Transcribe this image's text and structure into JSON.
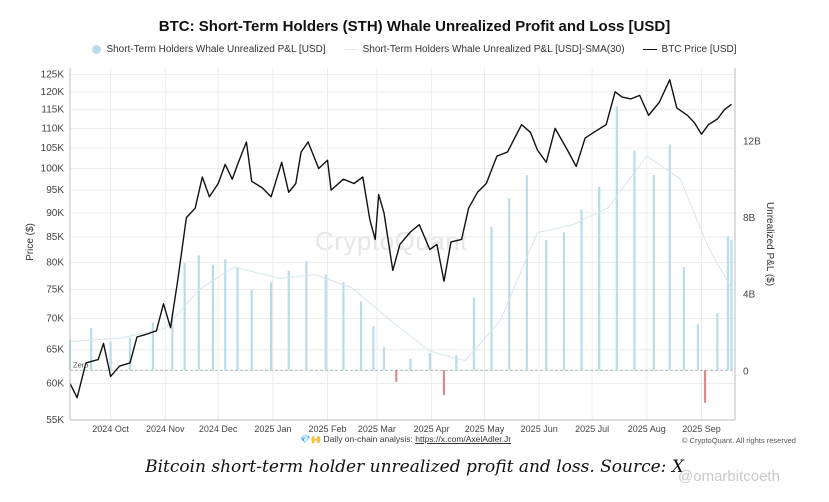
{
  "title": "BTC: Short-Term Holders (STH) Whale Unrealized Profit and Loss [USD]",
  "legend": [
    {
      "label": "Short-Term Holders Whale Unrealized P&L [USD]",
      "icon": "filled-circle",
      "color": "#b8dcea"
    },
    {
      "label": "Short-Term Holders Whale Unrealized P&L [USD]-SMA(30)",
      "icon": "thin-line",
      "color": "#d6e6ec"
    },
    {
      "label": "BTC Price [USD]",
      "icon": "line",
      "color": "#111111"
    }
  ],
  "watermark_center": "CryptoQuant",
  "footer": {
    "text": "Daily on-chain analysis:",
    "link": "https://x.com/AxelAdler.Jr"
  },
  "copyright": "© CryptoQuant. All rights reserved",
  "caption": "Bitcoin short-term holder unrealized profit and loss. Source: X",
  "corner_watermark": "@omarbitcoeth",
  "colors": {
    "bars_positive": "#b8dcea",
    "bars_negative": "#d98b8b",
    "price": "#111111",
    "sma": "#d6e6ec"
  },
  "chart_data": {
    "type": "bar",
    "x_axis": {
      "ticks": [
        "2024 Oct",
        "2024 Nov",
        "2024 Dec",
        "2025 Jan",
        "2025 Feb",
        "2025 Mar",
        "2025 Apr",
        "2025 May",
        "2025 Jun",
        "2025 Jul",
        "2025 Aug",
        "2025 Sep"
      ],
      "range": [
        "2024-09-08",
        "2025-09-20"
      ]
    },
    "y_left": {
      "label": "Price ($)",
      "scale": "log",
      "ticks": [
        "55K",
        "60K",
        "65K",
        "70K",
        "75K",
        "80K",
        "85K",
        "90K",
        "95K",
        "100K",
        "105K",
        "110K",
        "115K",
        "120K",
        "125K"
      ],
      "range": [
        55000,
        127000
      ]
    },
    "y_right": {
      "label": "Unrealized P&L ($)",
      "ticks": [
        "0",
        "4B",
        "8B",
        "12B"
      ],
      "range": [
        -2600000000,
        15800000000
      ],
      "zero_label": "Zero"
    },
    "series": [
      {
        "name": "BTC Price [USD]",
        "type": "line",
        "axis": "left",
        "points": [
          [
            "2024-09-08",
            60000
          ],
          [
            "2024-09-12",
            58000
          ],
          [
            "2024-09-17",
            63000
          ],
          [
            "2024-09-24",
            63500
          ],
          [
            "2024-09-27",
            66000
          ],
          [
            "2024-10-01",
            61000
          ],
          [
            "2024-10-06",
            62500
          ],
          [
            "2024-10-12",
            63000
          ],
          [
            "2024-10-16",
            67000
          ],
          [
            "2024-10-22",
            67500
          ],
          [
            "2024-10-27",
            68000
          ],
          [
            "2024-10-31",
            72500
          ],
          [
            "2024-11-04",
            68500
          ],
          [
            "2024-11-08",
            76500
          ],
          [
            "2024-11-13",
            89000
          ],
          [
            "2024-11-18",
            91000
          ],
          [
            "2024-11-22",
            98000
          ],
          [
            "2024-11-26",
            93500
          ],
          [
            "2024-12-01",
            96500
          ],
          [
            "2024-12-05",
            101000
          ],
          [
            "2024-12-09",
            97500
          ],
          [
            "2024-12-12",
            101000
          ],
          [
            "2024-12-17",
            106500
          ],
          [
            "2024-12-20",
            97000
          ],
          [
            "2024-12-26",
            95500
          ],
          [
            "2024-12-31",
            93500
          ],
          [
            "2025-01-06",
            101500
          ],
          [
            "2025-01-10",
            94500
          ],
          [
            "2025-01-14",
            96500
          ],
          [
            "2025-01-17",
            104000
          ],
          [
            "2025-01-21",
            106500
          ],
          [
            "2025-01-27",
            100000
          ],
          [
            "2025-02-01",
            102000
          ],
          [
            "2025-02-03",
            95000
          ],
          [
            "2025-02-10",
            97500
          ],
          [
            "2025-02-16",
            96500
          ],
          [
            "2025-02-21",
            98000
          ],
          [
            "2025-02-25",
            88500
          ],
          [
            "2025-02-28",
            84500
          ],
          [
            "2025-03-02",
            94000
          ],
          [
            "2025-03-05",
            90000
          ],
          [
            "2025-03-10",
            78500
          ],
          [
            "2025-03-14",
            83500
          ],
          [
            "2025-03-20",
            86000
          ],
          [
            "2025-03-25",
            87500
          ],
          [
            "2025-03-31",
            82500
          ],
          [
            "2025-04-04",
            83500
          ],
          [
            "2025-04-08",
            76500
          ],
          [
            "2025-04-12",
            84000
          ],
          [
            "2025-04-18",
            84500
          ],
          [
            "2025-04-22",
            91000
          ],
          [
            "2025-04-27",
            94500
          ],
          [
            "2025-05-02",
            96500
          ],
          [
            "2025-05-08",
            103000
          ],
          [
            "2025-05-14",
            104000
          ],
          [
            "2025-05-22",
            111000
          ],
          [
            "2025-05-27",
            109000
          ],
          [
            "2025-05-31",
            104500
          ],
          [
            "2025-06-05",
            101500
          ],
          [
            "2025-06-10",
            110000
          ],
          [
            "2025-06-17",
            104500
          ],
          [
            "2025-06-22",
            100500
          ],
          [
            "2025-06-27",
            107500
          ],
          [
            "2025-07-02",
            109000
          ],
          [
            "2025-07-09",
            111000
          ],
          [
            "2025-07-14",
            120000
          ],
          [
            "2025-07-18",
            118500
          ],
          [
            "2025-07-23",
            118000
          ],
          [
            "2025-07-28",
            119000
          ],
          [
            "2025-08-02",
            113500
          ],
          [
            "2025-08-08",
            117000
          ],
          [
            "2025-08-14",
            123500
          ],
          [
            "2025-08-18",
            115500
          ],
          [
            "2025-08-24",
            113500
          ],
          [
            "2025-08-28",
            111500
          ],
          [
            "2025-09-01",
            108500
          ],
          [
            "2025-09-05",
            111000
          ],
          [
            "2025-09-10",
            112500
          ],
          [
            "2025-09-14",
            115000
          ],
          [
            "2025-09-18",
            116500
          ]
        ]
      },
      {
        "name": "Short-Term Holders Whale Unrealized P&L [USD]",
        "type": "bar",
        "axis": "right",
        "points": [
          [
            "2024-09-08",
            1600000000
          ],
          [
            "2024-09-20",
            2200000000
          ],
          [
            "2024-10-01",
            1500000000
          ],
          [
            "2024-10-12",
            1700000000
          ],
          [
            "2024-10-25",
            2500000000
          ],
          [
            "2024-11-05",
            3000000000
          ],
          [
            "2024-11-12",
            5600000000
          ],
          [
            "2024-11-20",
            6000000000
          ],
          [
            "2024-11-28",
            5500000000
          ],
          [
            "2024-12-05",
            5800000000
          ],
          [
            "2024-12-12",
            5400000000
          ],
          [
            "2024-12-20",
            4200000000
          ],
          [
            "2024-12-31",
            4600000000
          ],
          [
            "2025-01-10",
            5200000000
          ],
          [
            "2025-01-20",
            5700000000
          ],
          [
            "2025-01-31",
            5000000000
          ],
          [
            "2025-02-10",
            4600000000
          ],
          [
            "2025-02-20",
            3600000000
          ],
          [
            "2025-02-27",
            2300000000
          ],
          [
            "2025-03-05",
            1200000000
          ],
          [
            "2025-03-12",
            -600000000
          ],
          [
            "2025-03-20",
            600000000
          ],
          [
            "2025-03-31",
            900000000
          ],
          [
            "2025-04-08",
            -1300000000
          ],
          [
            "2025-04-15",
            800000000
          ],
          [
            "2025-04-25",
            3800000000
          ],
          [
            "2025-05-05",
            7500000000
          ],
          [
            "2025-05-15",
            9000000000
          ],
          [
            "2025-05-25",
            10200000000
          ],
          [
            "2025-06-05",
            6800000000
          ],
          [
            "2025-06-15",
            7200000000
          ],
          [
            "2025-06-25",
            8400000000
          ],
          [
            "2025-07-05",
            9600000000
          ],
          [
            "2025-07-15",
            13800000000
          ],
          [
            "2025-07-25",
            11500000000
          ],
          [
            "2025-08-05",
            10200000000
          ],
          [
            "2025-08-14",
            11800000000
          ],
          [
            "2025-08-22",
            5400000000
          ],
          [
            "2025-08-30",
            2400000000
          ],
          [
            "2025-09-03",
            -1700000000
          ],
          [
            "2025-09-10",
            3000000000
          ],
          [
            "2025-09-16",
            7000000000
          ],
          [
            "2025-09-18",
            6800000000
          ]
        ]
      },
      {
        "name": "Short-Term Holders Whale Unrealized P&L [USD]-SMA(30)",
        "type": "line",
        "axis": "right",
        "points": [
          [
            "2024-09-08",
            1500000000
          ],
          [
            "2024-10-08",
            1700000000
          ],
          [
            "2024-11-01",
            2200000000
          ],
          [
            "2024-11-20",
            4200000000
          ],
          [
            "2024-12-10",
            5400000000
          ],
          [
            "2025-01-05",
            4800000000
          ],
          [
            "2025-01-25",
            5000000000
          ],
          [
            "2025-02-15",
            4300000000
          ],
          [
            "2025-03-10",
            2500000000
          ],
          [
            "2025-03-31",
            1000000000
          ],
          [
            "2025-04-20",
            500000000
          ],
          [
            "2025-05-10",
            2600000000
          ],
          [
            "2025-05-31",
            7200000000
          ],
          [
            "2025-06-20",
            7600000000
          ],
          [
            "2025-07-10",
            8500000000
          ],
          [
            "2025-08-01",
            11200000000
          ],
          [
            "2025-08-20",
            10000000000
          ],
          [
            "2025-09-05",
            6400000000
          ],
          [
            "2025-09-18",
            4300000000
          ]
        ]
      }
    ]
  }
}
